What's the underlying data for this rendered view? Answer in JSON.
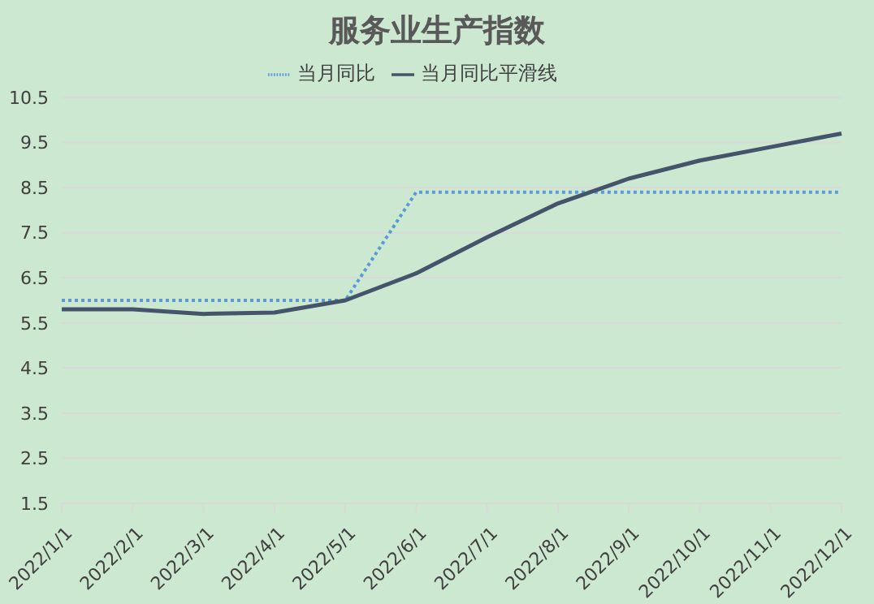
{
  "chart_data": {
    "type": "line",
    "title": "服务业生产指数",
    "categories": [
      "2022/1/1",
      "2022/2/1",
      "2022/3/1",
      "2022/4/1",
      "2022/5/1",
      "2022/6/1",
      "2022/7/1",
      "2022/8/1",
      "2022/9/1",
      "2022/10/1",
      "2022/11/1",
      "2022/12/1"
    ],
    "series": [
      {
        "name": "当月同比",
        "color": "#5b9bd5",
        "line_style": "dotted",
        "values": [
          6.0,
          6.0,
          6.0,
          6.0,
          6.0,
          8.4,
          8.4,
          8.4,
          8.4,
          8.4,
          8.4,
          8.4
        ]
      },
      {
        "name": "当月同比平滑线",
        "color": "#44546a",
        "line_style": "solid",
        "values": [
          5.8,
          5.8,
          5.7,
          5.73,
          6.0,
          6.6,
          7.4,
          8.15,
          8.7,
          9.1,
          9.4,
          9.7
        ]
      }
    ],
    "ylim": [
      1.5,
      10.5
    ],
    "yticks": [
      1.5,
      2.5,
      3.5,
      4.5,
      5.5,
      6.5,
      7.5,
      8.5,
      9.5,
      10.5
    ],
    "grid": "y",
    "legend": "top",
    "marker": "none"
  }
}
